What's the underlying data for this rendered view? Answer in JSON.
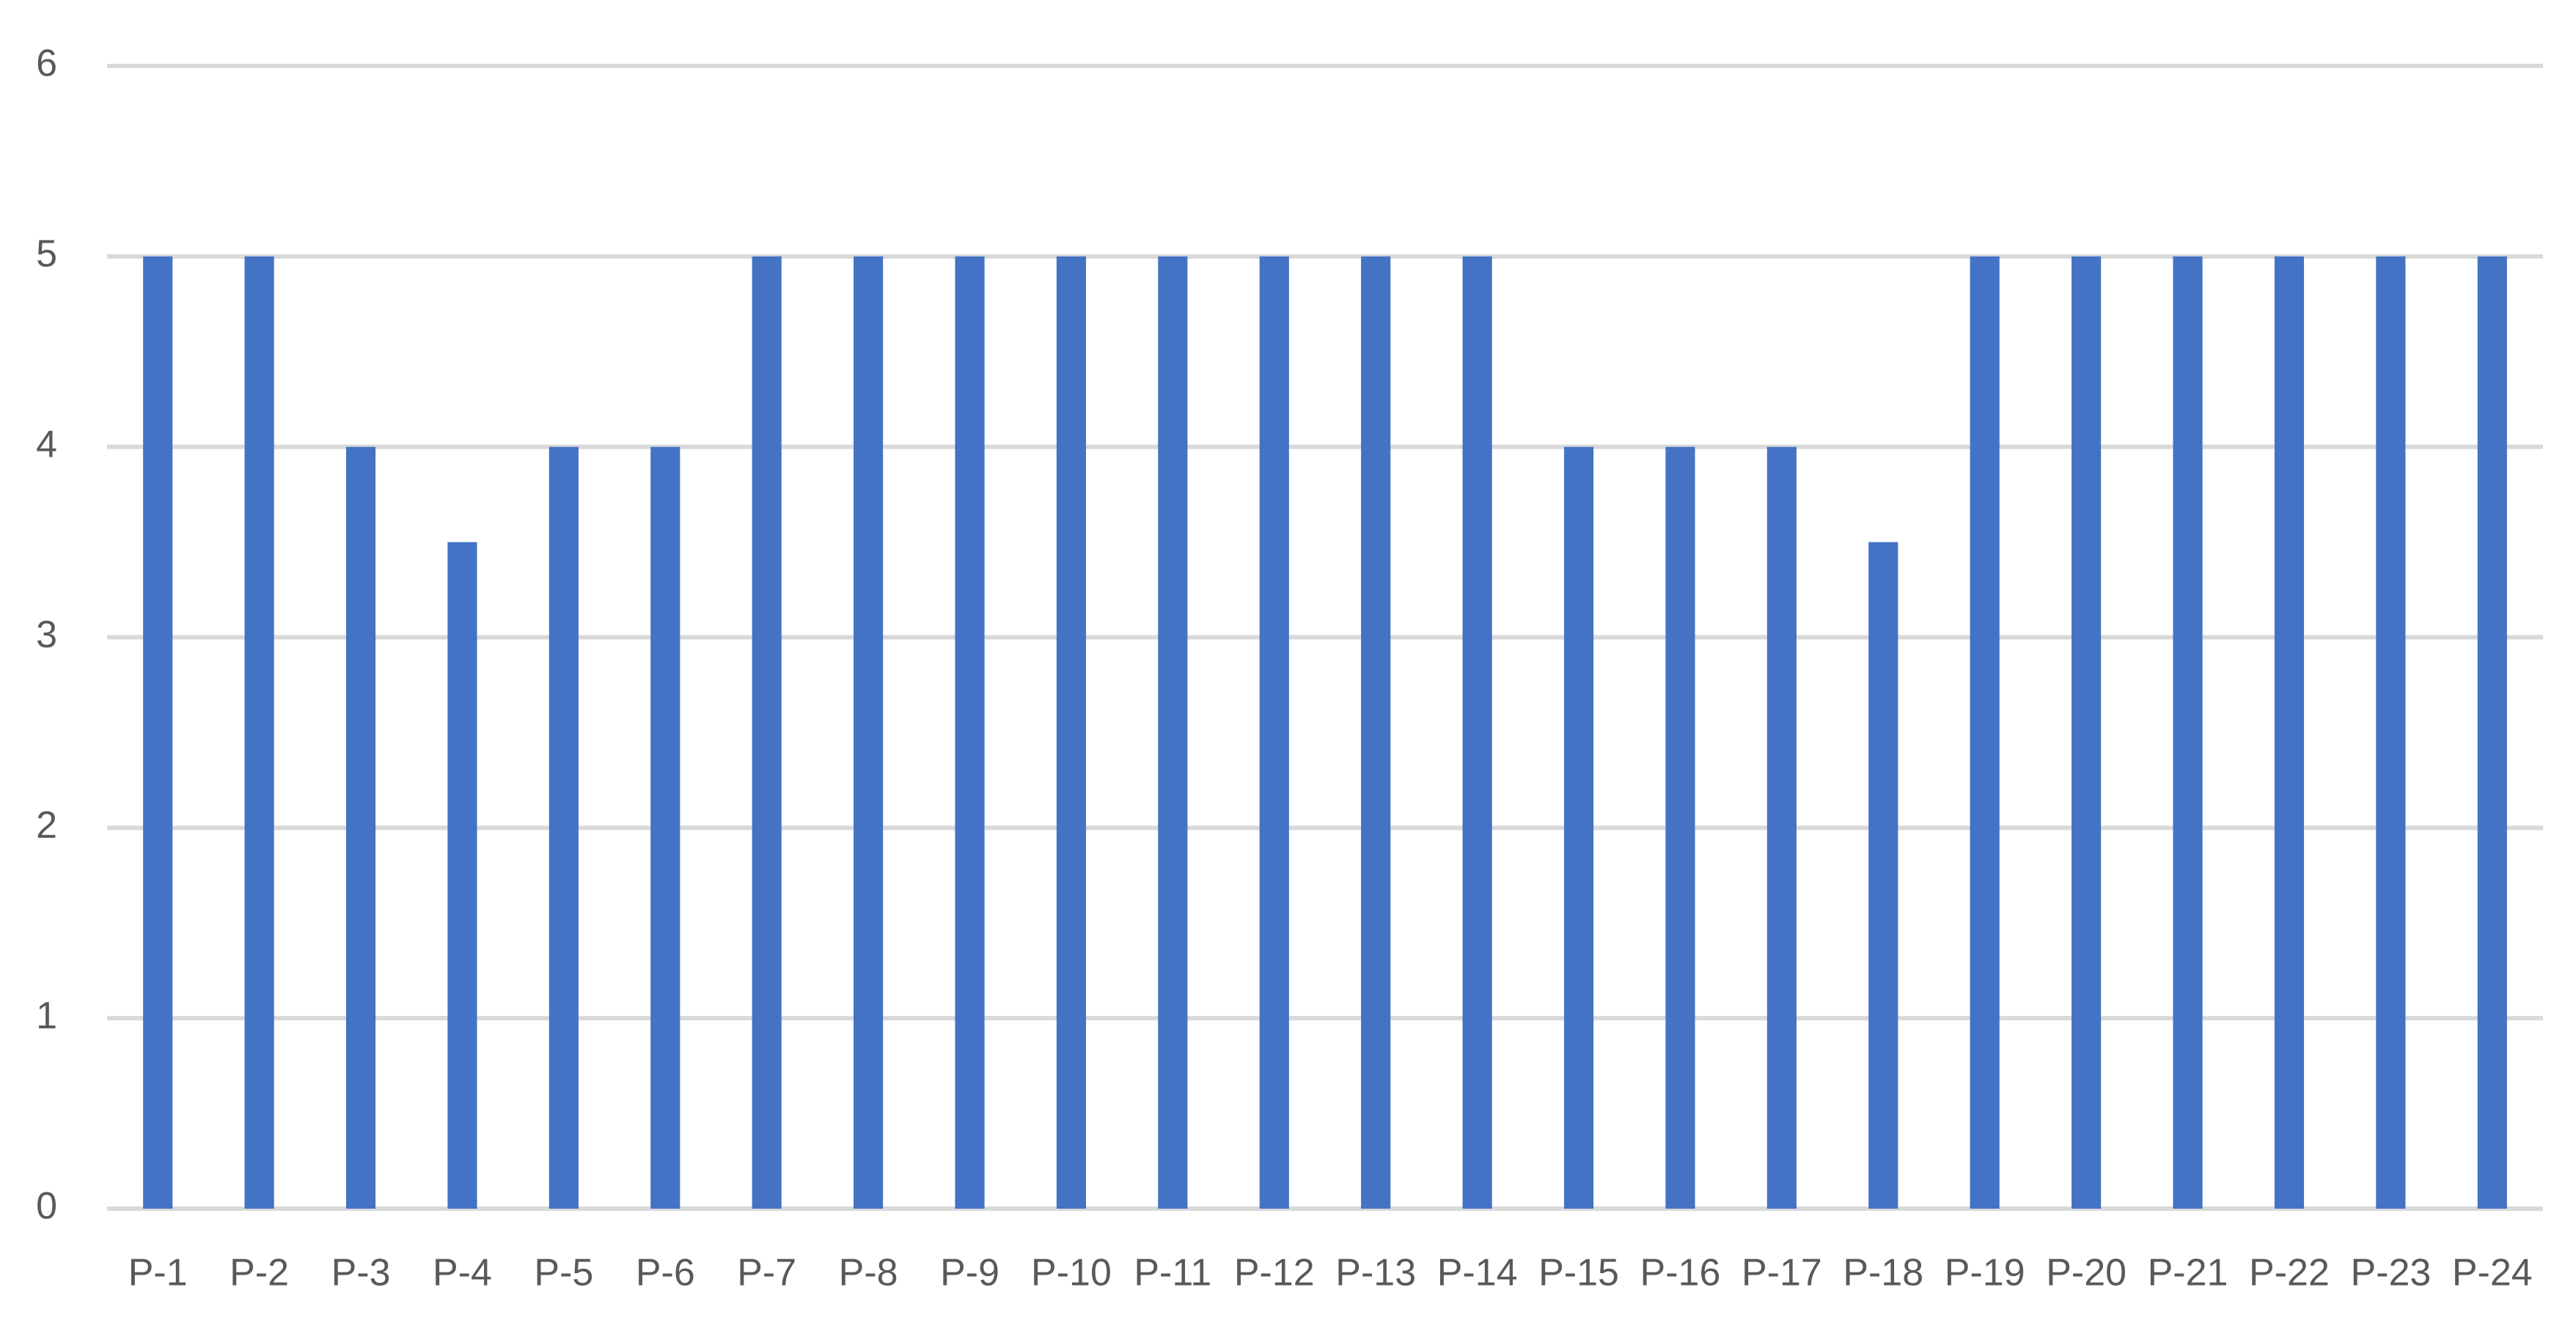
{
  "chart_data": {
    "type": "bar",
    "categories": [
      "P-1",
      "P-2",
      "P-3",
      "P-4",
      "P-5",
      "P-6",
      "P-7",
      "P-8",
      "P-9",
      "P-10",
      "P-11",
      "P-12",
      "P-13",
      "P-14",
      "P-15",
      "P-16",
      "P-17",
      "P-18",
      "P-19",
      "P-20",
      "P-21",
      "P-22",
      "P-23",
      "P-24"
    ],
    "values": [
      5,
      5,
      4,
      3.5,
      4,
      4,
      5,
      5,
      5,
      5,
      5,
      5,
      5,
      5,
      4,
      4,
      4,
      3.5,
      5,
      5,
      5,
      5,
      5,
      5
    ],
    "color": "#4472c4",
    "ylim": [
      0,
      6
    ],
    "yticks": [
      0,
      1,
      2,
      3,
      4,
      5,
      6
    ],
    "grid": true
  }
}
